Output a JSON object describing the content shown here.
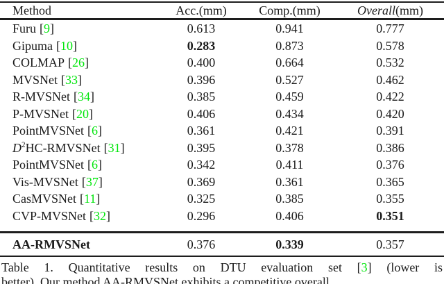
{
  "table": {
    "cite_open": "[",
    "cite_close": "]",
    "header": {
      "method": "Method",
      "acc": "Acc.(mm)",
      "comp": "Comp.(mm)",
      "overall_italic": "Overall",
      "overall_unit": "(mm)"
    },
    "rows": [
      {
        "name": "Furu",
        "ref": "9",
        "acc": "0.613",
        "comp": "0.941",
        "overall": "0.777"
      },
      {
        "name": "Gipuma",
        "ref": "10",
        "acc": "0.283",
        "comp": "0.873",
        "overall": "0.578"
      },
      {
        "name": "COLMAP",
        "ref": "26",
        "acc": "0.400",
        "comp": "0.664",
        "overall": "0.532"
      },
      {
        "name": "MVSNet",
        "ref": "33",
        "acc": "0.396",
        "comp": "0.527",
        "overall": "0.462"
      },
      {
        "name": "R-MVSNet",
        "ref": "34",
        "acc": "0.385",
        "comp": "0.459",
        "overall": "0.422"
      },
      {
        "name": "P-MVSNet",
        "ref": "20",
        "acc": "0.406",
        "comp": "0.434",
        "overall": "0.420"
      },
      {
        "name": "PointMVSNet",
        "ref": "6",
        "acc": "0.361",
        "comp": "0.421",
        "overall": "0.391"
      },
      {
        "name_italic": "D",
        "name_sup": "2",
        "name": "HC-RMVSNet",
        "ref": "31",
        "acc": "0.395",
        "comp": "0.378",
        "overall": "0.386"
      },
      {
        "name": "PointMVSNet",
        "ref": "6",
        "acc": "0.342",
        "comp": "0.411",
        "overall": "0.376"
      },
      {
        "name": "Vis-MVSNet",
        "ref": "37",
        "acc": "0.369",
        "comp": "0.361",
        "overall": "0.365"
      },
      {
        "name": "CasMVSNet",
        "ref": "11",
        "acc": "0.325",
        "comp": "0.385",
        "overall": "0.355"
      },
      {
        "name": "CVP-MVSNet",
        "ref": "32",
        "acc": "0.296",
        "comp": "0.406",
        "overall": "0.351"
      }
    ],
    "footer_row": {
      "name": "AA-RMVSNet",
      "acc": "0.376",
      "comp": "0.339",
      "overall": "0.357"
    }
  },
  "caption": {
    "line1_prefix": "Table 1. Quantitative results on DTU evaluation set ",
    "line1_ref": "3",
    "line1_suffix": " (lower is",
    "line2": "better). Our method AA-RMVSNet exhibits a competitive overall"
  },
  "colors": {
    "citation_green": "#00e60b",
    "text": "#1a1a1a",
    "background": "#ffffff"
  }
}
